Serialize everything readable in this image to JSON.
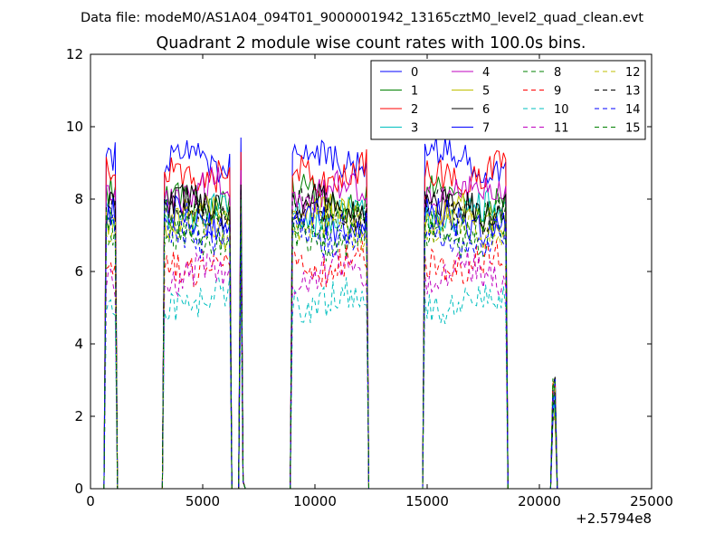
{
  "suptitle": "Data file: modeM0/AS1A04_094T01_9000001942_13165cztM0_level2_quad_clean.evt",
  "chart_data": {
    "type": "line",
    "title": "Quadrant 2 module wise count rates with 100.0s bins.",
    "xlabel": "",
    "ylabel": "",
    "xlim": [
      0,
      25000
    ],
    "ylim": [
      0,
      12
    ],
    "x_offset_label": "+2.5794e8",
    "xticks": [
      0,
      5000,
      10000,
      15000,
      20000,
      25000
    ],
    "xtick_labels": [
      "0",
      "5000",
      "10000",
      "15000",
      "20000",
      "25000"
    ],
    "yticks": [
      0,
      2,
      4,
      6,
      8,
      10,
      12
    ],
    "ytick_labels": [
      "0",
      "2",
      "4",
      "6",
      "8",
      "10",
      "12"
    ],
    "grid": false,
    "legend_position": "top-right",
    "segments": [
      {
        "start": 700,
        "end": 1100
      },
      {
        "start": 3300,
        "end": 6200
      },
      {
        "start": 6700,
        "end": 6800
      },
      {
        "start": 9000,
        "end": 12300
      },
      {
        "start": 14900,
        "end": 18500
      },
      {
        "start": 20600,
        "end": 20700
      }
    ],
    "series": [
      {
        "name": "0",
        "color": "#0000ff",
        "style": "solid",
        "level": 9.1
      },
      {
        "name": "1",
        "color": "#008000",
        "style": "solid",
        "level": 8.0
      },
      {
        "name": "2",
        "color": "#ff0000",
        "style": "solid",
        "level": 8.7
      },
      {
        "name": "3",
        "color": "#00bfbf",
        "style": "solid",
        "level": 7.6
      },
      {
        "name": "4",
        "color": "#bf00bf",
        "style": "solid",
        "level": 8.2
      },
      {
        "name": "5",
        "color": "#bfbf00",
        "style": "solid",
        "level": 7.5
      },
      {
        "name": "6",
        "color": "#000000",
        "style": "solid",
        "level": 7.8
      },
      {
        "name": "7",
        "color": "#0000ff",
        "style": "solid",
        "level": 7.4
      },
      {
        "name": "8",
        "color": "#008000",
        "style": "dashed",
        "level": 6.9
      },
      {
        "name": "9",
        "color": "#ff0000",
        "style": "dashed",
        "level": 6.2
      },
      {
        "name": "10",
        "color": "#00bfbf",
        "style": "dashed",
        "level": 5.2
      },
      {
        "name": "11",
        "color": "#bf00bf",
        "style": "dashed",
        "level": 5.9
      },
      {
        "name": "12",
        "color": "#bfbf00",
        "style": "dashed",
        "level": 7.2
      },
      {
        "name": "13",
        "color": "#000000",
        "style": "dashed",
        "level": 7.7
      },
      {
        "name": "14",
        "color": "#0000ff",
        "style": "dashed",
        "level": 7.0
      },
      {
        "name": "15",
        "color": "#008000",
        "style": "dashed",
        "level": 7.4
      }
    ]
  }
}
